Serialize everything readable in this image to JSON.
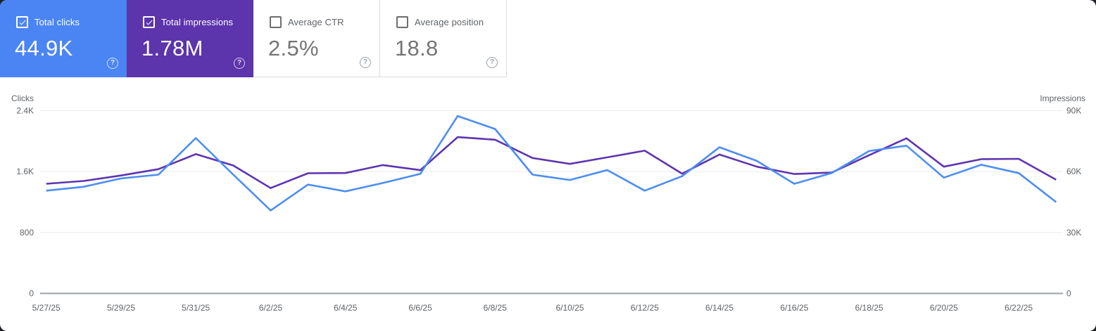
{
  "help_icon_glyph": "?",
  "cards": [
    {
      "label": "Total clicks",
      "value": "44.9K",
      "checked": true,
      "bg": "#4b85f4",
      "text_color": "#ffffff"
    },
    {
      "label": "Total impressions",
      "value": "1.78M",
      "checked": true,
      "bg": "#5c34ac",
      "text_color": "#ffffff"
    },
    {
      "label": "Average CTR",
      "value": "2.5%",
      "checked": false,
      "bg": "#ffffff",
      "text_color": "#757575"
    },
    {
      "label": "Average position",
      "value": "18.8",
      "checked": false,
      "bg": "#ffffff",
      "text_color": "#757575"
    }
  ],
  "chart_data": {
    "type": "line",
    "x": [
      "5/27/25",
      "5/28/25",
      "5/29/25",
      "5/30/25",
      "5/31/25",
      "6/1/25",
      "6/2/25",
      "6/3/25",
      "6/4/25",
      "6/5/25",
      "6/6/25",
      "6/7/25",
      "6/8/25",
      "6/9/25",
      "6/10/25",
      "6/11/25",
      "6/12/25",
      "6/13/25",
      "6/14/25",
      "6/15/25",
      "6/16/25",
      "6/17/25",
      "6/18/25",
      "6/19/25",
      "6/20/25",
      "6/21/25",
      "6/22/25",
      "6/23/25"
    ],
    "x_label_every": 2,
    "series": [
      {
        "name": "Clicks",
        "axis": "left",
        "color": "#4d8df2",
        "values": [
          1350,
          1400,
          1510,
          1560,
          2040,
          1560,
          1090,
          1430,
          1340,
          1450,
          1570,
          2330,
          2160,
          1560,
          1490,
          1620,
          1350,
          1540,
          1920,
          1740,
          1440,
          1580,
          1870,
          1940,
          1520,
          1690,
          1580,
          1200
        ]
      },
      {
        "name": "Impressions",
        "axis": "right",
        "color": "#5e35b1",
        "values": [
          54000,
          55400,
          58100,
          61200,
          68600,
          63000,
          51900,
          59200,
          59300,
          63200,
          60700,
          77000,
          75700,
          66700,
          63800,
          67000,
          70300,
          59000,
          68400,
          62400,
          58800,
          59500,
          68100,
          76400,
          62400,
          66100,
          66300,
          56000
        ]
      }
    ],
    "left_axis": {
      "title": "Clicks",
      "ticks": [
        "2.4K",
        "1.6K",
        "800",
        "0"
      ],
      "max": 2400
    },
    "right_axis": {
      "title": "Impressions",
      "ticks": [
        "90K",
        "60K",
        "30K",
        "0"
      ],
      "max": 90000
    },
    "grid": true,
    "legend_position": "none",
    "gridline_color": "#e9ebee",
    "axis_line_color": "#9aa0a6"
  }
}
